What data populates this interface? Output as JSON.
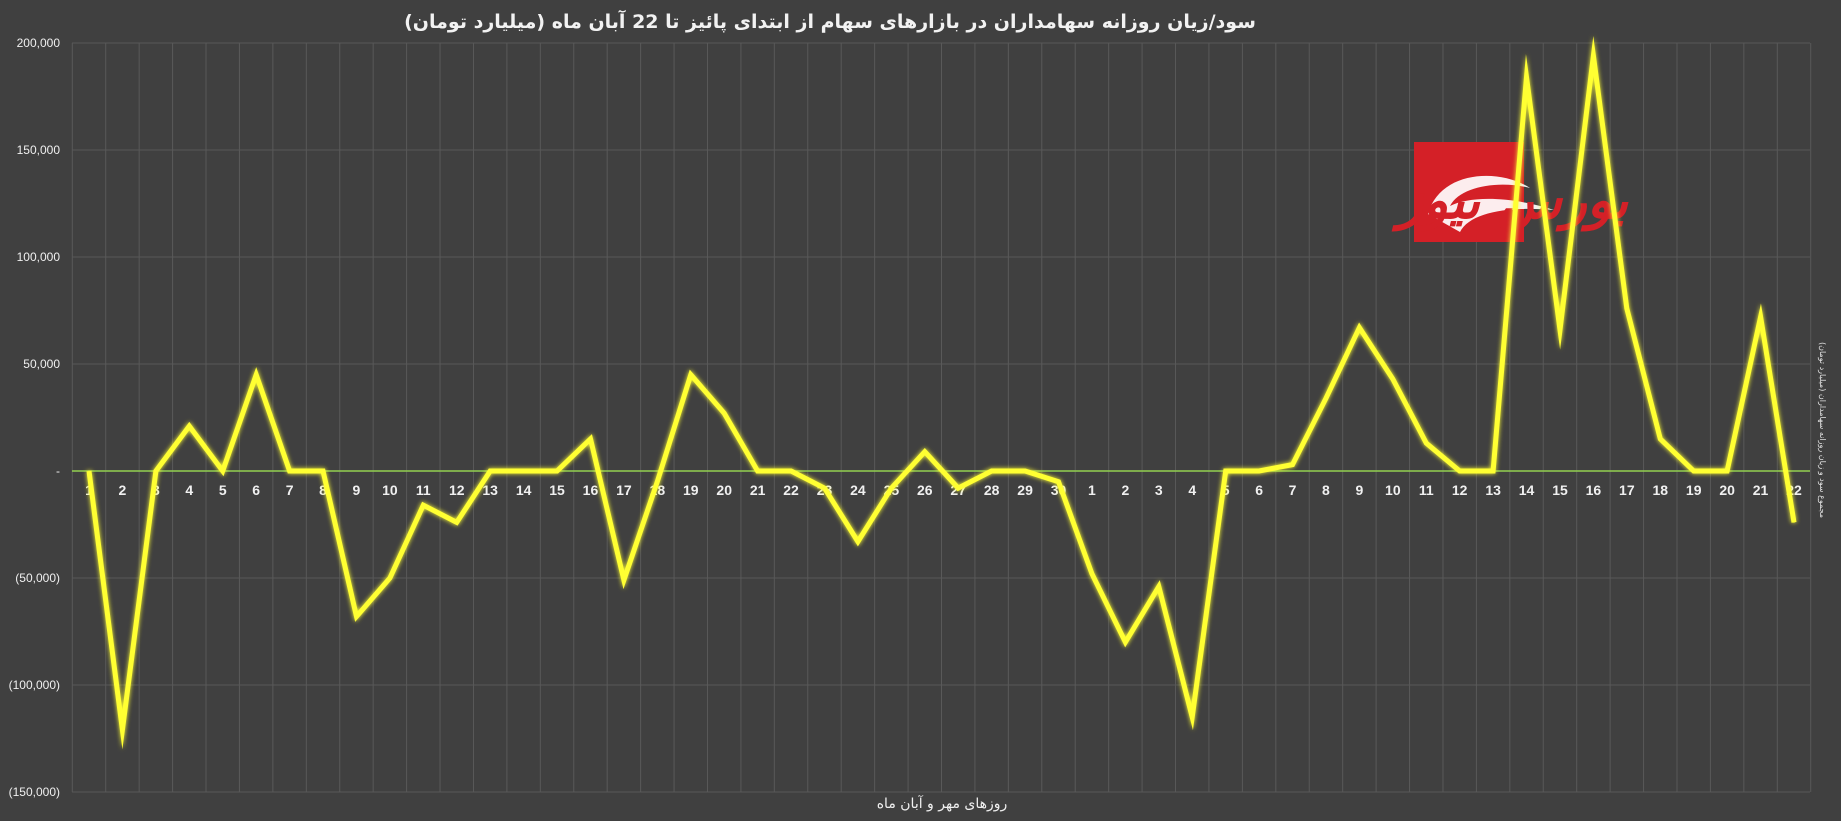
{
  "chart_data": {
    "type": "line",
    "title": "سود/زیان روزانه سهامداران در بازارهای سهام از ابتدای پائیز تا 22 آبان ماه (میلیارد تومان)",
    "xlabel": "روزهای مهر و آبان  ماه",
    "ylabel": "مجموع سود و زیان روزانه سهامداران (میلیارد تومان)",
    "ylim": [
      -150000,
      200000
    ],
    "yticks": [
      200000,
      150000,
      100000,
      50000,
      0,
      -50000,
      -100000,
      -150000
    ],
    "ytick_labels": [
      "200,000",
      "150,000",
      "100,000",
      "50,000",
      "-",
      "(50,000)",
      "(100,000)",
      "(150,000)"
    ],
    "grid": true,
    "categories": [
      "1",
      "2",
      "3",
      "4",
      "5",
      "6",
      "7",
      "8",
      "9",
      "10",
      "11",
      "12",
      "13",
      "14",
      "15",
      "16",
      "17",
      "18",
      "19",
      "20",
      "21",
      "22",
      "23",
      "24",
      "25",
      "26",
      "27",
      "28",
      "29",
      "30",
      "1",
      "2",
      "3",
      "4",
      "5",
      "6",
      "7",
      "8",
      "9",
      "10",
      "11",
      "12",
      "13",
      "14",
      "15",
      "16",
      "17",
      "18",
      "19",
      "20",
      "21",
      "22"
    ],
    "series": [
      {
        "values": [
          0,
          -121000,
          0,
          21000,
          0,
          45000,
          0,
          0,
          -68000,
          -50000,
          -16000,
          -24000,
          0,
          0,
          0,
          15000,
          -51000,
          -5000,
          45000,
          27000,
          0,
          0,
          -8000,
          -33000,
          -8000,
          9000,
          -8000,
          0,
          0,
          -5000,
          -48000,
          -80000,
          -54000,
          -115000,
          0,
          0,
          3000,
          34000,
          67000,
          43000,
          13000,
          0,
          0,
          184000,
          66000,
          194000,
          76000,
          15000,
          0,
          0,
          72000,
          -24000
        ],
        "color": "#ffff33"
      }
    ],
    "zero_line_color": "#92d050",
    "watermark_text": "بورس نیوز",
    "watermark_color": "#d42027"
  }
}
